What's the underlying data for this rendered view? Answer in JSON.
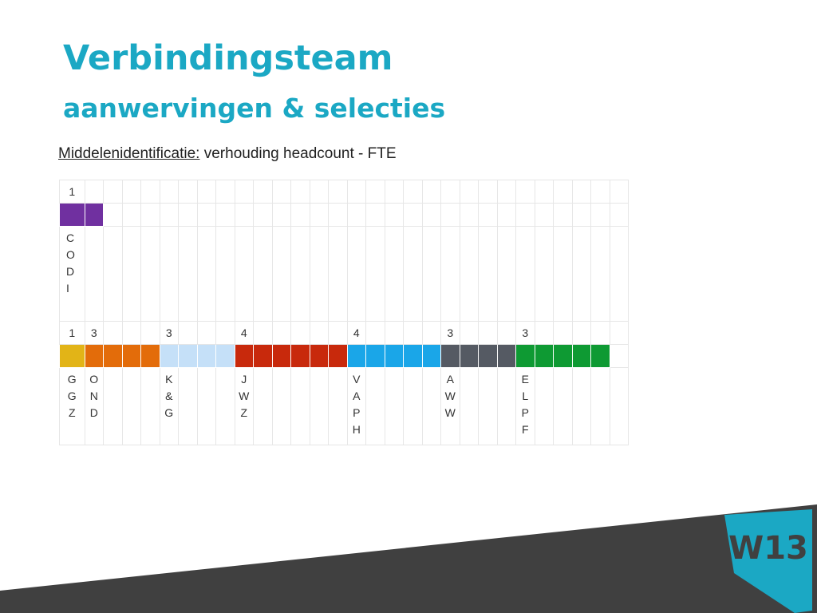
{
  "header": {
    "title": "Verbindingsteam",
    "subtitle": "aanwervingen & selecties"
  },
  "intro": {
    "underlined": "Middelenidentificatie:",
    "rest": "verhouding headcount - FTE"
  },
  "codi": {
    "count": "1",
    "name_letters": [
      "C",
      "O",
      "D",
      "I"
    ],
    "color": "#7030a0",
    "blocks": 2
  },
  "groups": [
    {
      "count": "1",
      "name_letters": [
        "G",
        "G",
        "Z"
      ],
      "color": "#e2b417",
      "blocks": 1
    },
    {
      "count": "3",
      "name_letters": [
        "O",
        "N",
        "D"
      ],
      "color": "#e36c0a",
      "blocks": 4
    },
    {
      "count": "3",
      "name_letters": [
        "K",
        "&",
        "G"
      ],
      "color": "#c5e0f8",
      "blocks": 4
    },
    {
      "count": "4",
      "name_letters": [
        "J",
        "W",
        "Z"
      ],
      "color": "#c8290c",
      "blocks": 6
    },
    {
      "count": "4",
      "name_letters": [
        "V",
        "A",
        "P",
        "H"
      ],
      "color": "#1aa6e8",
      "blocks": 5
    },
    {
      "count": "3",
      "name_letters": [
        "A",
        "W",
        "W"
      ],
      "color": "#555a63",
      "blocks": 4
    },
    {
      "count": "3",
      "name_letters": [
        "E",
        "L",
        "P",
        "F"
      ],
      "color": "#0e9a33",
      "blocks": 5
    }
  ],
  "logo": {
    "text": "W13",
    "color": "#1ba8c4",
    "band_color": "#404040"
  }
}
